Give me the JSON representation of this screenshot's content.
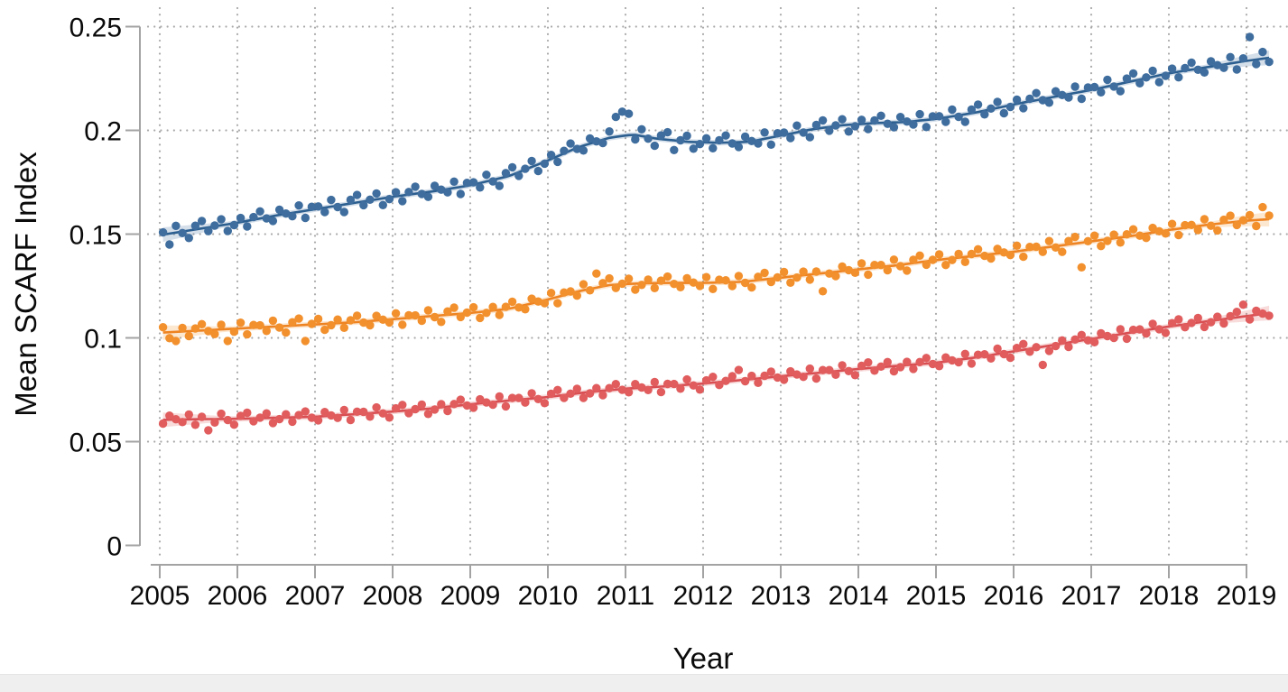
{
  "figure": {
    "background": "#ffffff",
    "bottom_strip_color": "#f0eff0"
  },
  "chart_data": {
    "type": "scatter",
    "subtype": "monthly scatter points with loess trend line and confidence band per series",
    "title": "",
    "xlabel": "Year",
    "ylabel": "Mean SCARF Index",
    "xlim": [
      2004.74,
      2019.53
    ],
    "ylim": [
      0,
      0.25
    ],
    "x_ticks": [
      2005,
      2006,
      2007,
      2008,
      2009,
      2010,
      2011,
      2012,
      2013,
      2014,
      2015,
      2016,
      2017,
      2018,
      2019
    ],
    "x_tick_labels": [
      "2005",
      "2006",
      "2007",
      "2008",
      "2009",
      "2010",
      "2011",
      "2012",
      "2013",
      "2014",
      "2015",
      "2016",
      "2017",
      "2018",
      "2019"
    ],
    "y_ticks": [
      0,
      0.05,
      0.1,
      0.15,
      0.2,
      0.25
    ],
    "y_tick_labels": [
      "0",
      "0.05",
      "0.1",
      "0.15",
      "0.2",
      "0.25"
    ],
    "grid": {
      "style": "dotted",
      "color": "#a9a9a9",
      "horizontal_at": [
        0.05,
        0.1,
        0.15,
        0.2,
        0.25
      ],
      "vertical_at_every_year": true
    },
    "legend": "none",
    "axis_color": "#a3a3a3",
    "sampling": {
      "x_start_year": 2005.0417,
      "x_step_years": 0.0833333,
      "n_points": 172,
      "note": "monthly points 2005 through early 2019"
    },
    "noise_pattern": [
      0.3,
      -0.6,
      0.9,
      -0.2,
      -1.0,
      0.5,
      1.0,
      -0.5,
      0.1,
      0.8,
      -0.9,
      -0.25,
      0.55,
      -0.75,
      0.35,
      0.95,
      -0.15,
      -0.65,
      0.7,
      0.05,
      -0.45,
      0.85,
      -0.95,
      0.4
    ],
    "band_halfwidth": {
      "base": 0.0013,
      "edge_extra": 0.0022,
      "edge_span_years": 0.8
    },
    "series": [
      {
        "name": "top-blue-series",
        "point_color": "#3e6d9e",
        "line_color": "#2c5f90",
        "band_color": "#3e6d9e",
        "band_opacity": 0.22,
        "noise_amp": 0.0036,
        "noise_phase": 0,
        "trend_knots": [
          [
            2005,
            0.1495
          ],
          [
            2005.5,
            0.1525
          ],
          [
            2006,
            0.1555
          ],
          [
            2006.5,
            0.159
          ],
          [
            2007,
            0.162
          ],
          [
            2007.5,
            0.165
          ],
          [
            2008,
            0.168
          ],
          [
            2008.5,
            0.1705
          ],
          [
            2009,
            0.1735
          ],
          [
            2009.5,
            0.178
          ],
          [
            2010,
            0.1855
          ],
          [
            2010.4,
            0.192
          ],
          [
            2010.8,
            0.1965
          ],
          [
            2011.1,
            0.198
          ],
          [
            2011.4,
            0.196
          ],
          [
            2011.8,
            0.1945
          ],
          [
            2012.2,
            0.194
          ],
          [
            2012.6,
            0.1945
          ],
          [
            2013,
            0.1975
          ],
          [
            2013.4,
            0.2005
          ],
          [
            2013.8,
            0.2025
          ],
          [
            2014.2,
            0.2035
          ],
          [
            2014.6,
            0.204
          ],
          [
            2015,
            0.2055
          ],
          [
            2015.5,
            0.2085
          ],
          [
            2016,
            0.2125
          ],
          [
            2016.5,
            0.216
          ],
          [
            2017,
            0.2195
          ],
          [
            2017.5,
            0.2235
          ],
          [
            2018,
            0.2275
          ],
          [
            2018.5,
            0.2305
          ],
          [
            2019,
            0.2335
          ],
          [
            2019.3,
            0.235
          ]
        ],
        "outlier_points": [
          [
            2005.125,
            0.145
          ],
          [
            2010.875,
            0.2065
          ],
          [
            2010.9583,
            0.209
          ],
          [
            2011.0417,
            0.208
          ],
          [
            2011.625,
            0.1905
          ],
          [
            2019.0417,
            0.245
          ],
          [
            2019.2917,
            0.233
          ]
        ]
      },
      {
        "name": "middle-orange-series",
        "point_color": "#f2902d",
        "line_color": "#ee8322",
        "band_color": "#f2902d",
        "band_opacity": 0.22,
        "noise_amp": 0.0032,
        "noise_phase": 9,
        "trend_knots": [
          [
            2005,
            0.1025
          ],
          [
            2005.5,
            0.1035
          ],
          [
            2006,
            0.1045
          ],
          [
            2006.5,
            0.1055
          ],
          [
            2007,
            0.1065
          ],
          [
            2007.5,
            0.1075
          ],
          [
            2008,
            0.109
          ],
          [
            2008.5,
            0.1105
          ],
          [
            2009,
            0.112
          ],
          [
            2009.5,
            0.114
          ],
          [
            2010,
            0.1185
          ],
          [
            2010.4,
            0.1225
          ],
          [
            2010.8,
            0.1255
          ],
          [
            2011.2,
            0.1263
          ],
          [
            2011.6,
            0.1265
          ],
          [
            2012,
            0.1265
          ],
          [
            2012.5,
            0.127
          ],
          [
            2013,
            0.129
          ],
          [
            2013.5,
            0.131
          ],
          [
            2014,
            0.133
          ],
          [
            2014.5,
            0.135
          ],
          [
            2015,
            0.1375
          ],
          [
            2015.5,
            0.1395
          ],
          [
            2016,
            0.1415
          ],
          [
            2016.5,
            0.144
          ],
          [
            2017,
            0.1465
          ],
          [
            2017.5,
            0.149
          ],
          [
            2018,
            0.152
          ],
          [
            2018.5,
            0.1545
          ],
          [
            2019,
            0.1565
          ],
          [
            2019.3,
            0.1572
          ]
        ],
        "outlier_points": [
          [
            2005.2083,
            0.0985
          ],
          [
            2005.875,
            0.0985
          ],
          [
            2006.875,
            0.0985
          ],
          [
            2010.625,
            0.131
          ],
          [
            2013.5,
            0.1225
          ],
          [
            2016.875,
            0.134
          ],
          [
            2019.2083,
            0.163
          ]
        ]
      },
      {
        "name": "bottom-red-series",
        "point_color": "#e05c5d",
        "line_color": "#d84e52",
        "band_color": "#e05c5d",
        "band_opacity": 0.22,
        "noise_amp": 0.0028,
        "noise_phase": 17,
        "trend_knots": [
          [
            2005,
            0.0605
          ],
          [
            2005.5,
            0.0608
          ],
          [
            2006,
            0.061
          ],
          [
            2006.5,
            0.0615
          ],
          [
            2007,
            0.062
          ],
          [
            2007.5,
            0.0632
          ],
          [
            2008,
            0.0645
          ],
          [
            2008.5,
            0.066
          ],
          [
            2009,
            0.068
          ],
          [
            2009.5,
            0.0698
          ],
          [
            2010,
            0.0715
          ],
          [
            2010.5,
            0.0738
          ],
          [
            2011,
            0.0755
          ],
          [
            2011.5,
            0.0766
          ],
          [
            2012,
            0.078
          ],
          [
            2012.5,
            0.0797
          ],
          [
            2013,
            0.0815
          ],
          [
            2013.5,
            0.0832
          ],
          [
            2014,
            0.085
          ],
          [
            2014.5,
            0.0865
          ],
          [
            2015,
            0.088
          ],
          [
            2015.5,
            0.0905
          ],
          [
            2016,
            0.0935
          ],
          [
            2016.5,
            0.0965
          ],
          [
            2017,
            0.0995
          ],
          [
            2017.5,
            0.1025
          ],
          [
            2018,
            0.1055
          ],
          [
            2018.5,
            0.108
          ],
          [
            2019,
            0.1105
          ],
          [
            2019.3,
            0.112
          ]
        ],
        "outlier_points": [
          [
            2005.625,
            0.0555
          ],
          [
            2012.4583,
            0.0845
          ],
          [
            2016.375,
            0.087
          ],
          [
            2018.9583,
            0.116
          ]
        ]
      }
    ]
  }
}
